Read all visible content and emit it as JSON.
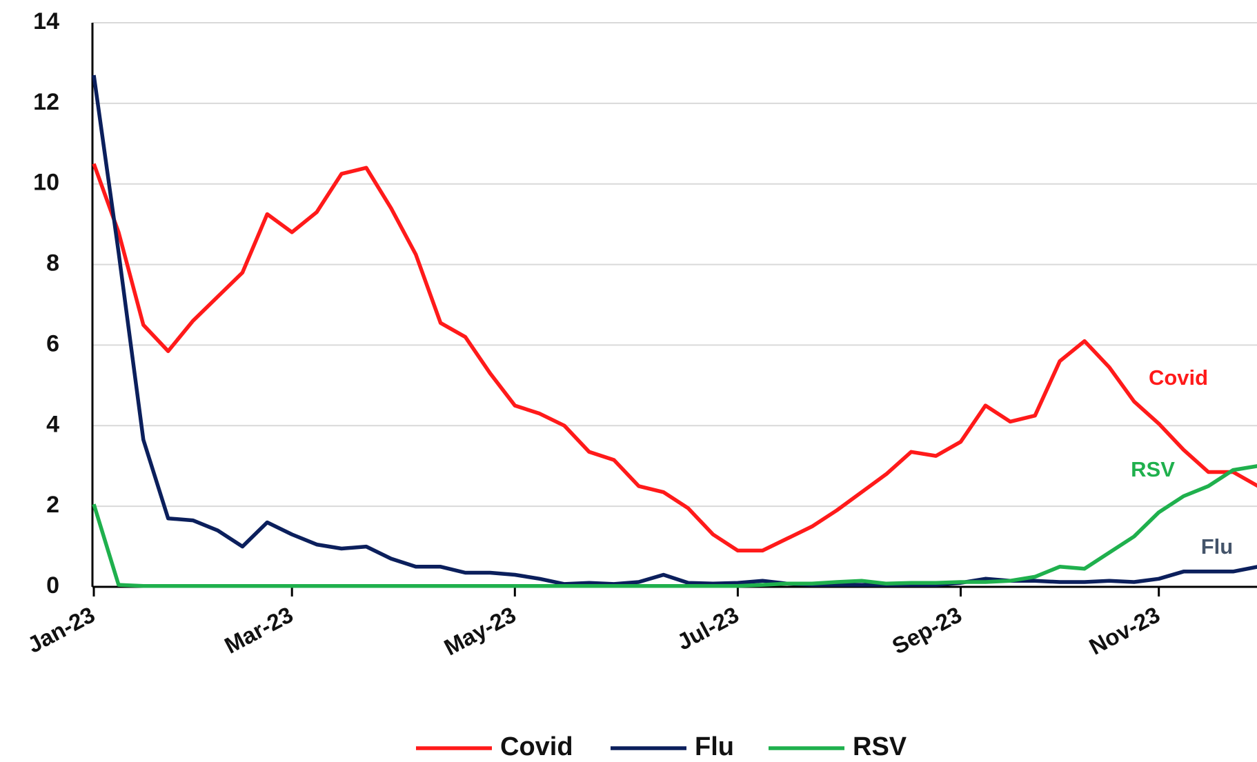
{
  "chart_data": {
    "type": "line",
    "categories": [
      "Jan-23",
      null,
      null,
      null,
      null,
      null,
      null,
      null,
      "Mar-23",
      null,
      null,
      null,
      null,
      null,
      null,
      null,
      null,
      "May-23",
      null,
      null,
      null,
      null,
      null,
      null,
      null,
      null,
      "Jul-23",
      null,
      null,
      null,
      null,
      null,
      null,
      null,
      null,
      "Sep-23",
      null,
      null,
      null,
      null,
      null,
      null,
      null,
      "Nov-23",
      null,
      null,
      null,
      null
    ],
    "series": [
      {
        "name": "Covid",
        "color": "#ff1a1a",
        "values": [
          10.5,
          8.8,
          6.5,
          5.85,
          6.6,
          7.2,
          7.8,
          9.25,
          8.8,
          9.3,
          10.25,
          10.4,
          9.4,
          8.25,
          6.55,
          6.2,
          5.3,
          4.5,
          4.3,
          4.0,
          3.35,
          3.15,
          2.5,
          2.35,
          1.95,
          1.3,
          0.9,
          0.9,
          1.2,
          1.5,
          1.9,
          2.35,
          2.8,
          3.35,
          3.25,
          3.6,
          4.5,
          4.1,
          4.25,
          5.6,
          6.1,
          5.45,
          4.6,
          4.05,
          3.4,
          2.85,
          2.85,
          2.5
        ]
      },
      {
        "name": "Flu",
        "color": "#0b1f5c",
        "values": [
          12.7,
          8.3,
          3.65,
          1.7,
          1.65,
          1.4,
          1.0,
          1.6,
          1.3,
          1.05,
          0.95,
          1.0,
          0.7,
          0.5,
          0.5,
          0.35,
          0.35,
          0.3,
          0.2,
          0.07,
          0.1,
          0.07,
          0.12,
          0.3,
          0.1,
          0.08,
          0.1,
          0.15,
          0.08,
          0.05,
          0.05,
          0.05,
          0.05,
          0.05,
          0.05,
          0.1,
          0.2,
          0.15,
          0.15,
          0.12,
          0.12,
          0.15,
          0.12,
          0.2,
          0.38,
          0.38,
          0.38,
          0.5
        ]
      },
      {
        "name": "RSV",
        "color": "#1fb04d",
        "values": [
          2.05,
          0.05,
          0.02,
          0.02,
          0.02,
          0.02,
          0.02,
          0.02,
          0.02,
          0.02,
          0.02,
          0.02,
          0.02,
          0.02,
          0.02,
          0.02,
          0.02,
          0.02,
          0.02,
          0.02,
          0.02,
          0.02,
          0.02,
          0.02,
          0.02,
          0.02,
          0.02,
          0.05,
          0.08,
          0.08,
          0.12,
          0.15,
          0.08,
          0.1,
          0.1,
          0.12,
          0.12,
          0.15,
          0.25,
          0.5,
          0.45,
          0.85,
          1.25,
          1.85,
          2.25,
          2.5,
          2.9,
          3.0
        ]
      }
    ],
    "annotations": [
      {
        "text": "Covid",
        "color": "#ff1a1a"
      },
      {
        "text": "RSV",
        "color": "#1fb04d"
      },
      {
        "text": "Flu",
        "color": "#44546a"
      }
    ],
    "ylim": [
      0,
      14
    ],
    "yticks": [
      0,
      2,
      4,
      6,
      8,
      10,
      12,
      14
    ],
    "grid": true,
    "legend": "bottom"
  }
}
